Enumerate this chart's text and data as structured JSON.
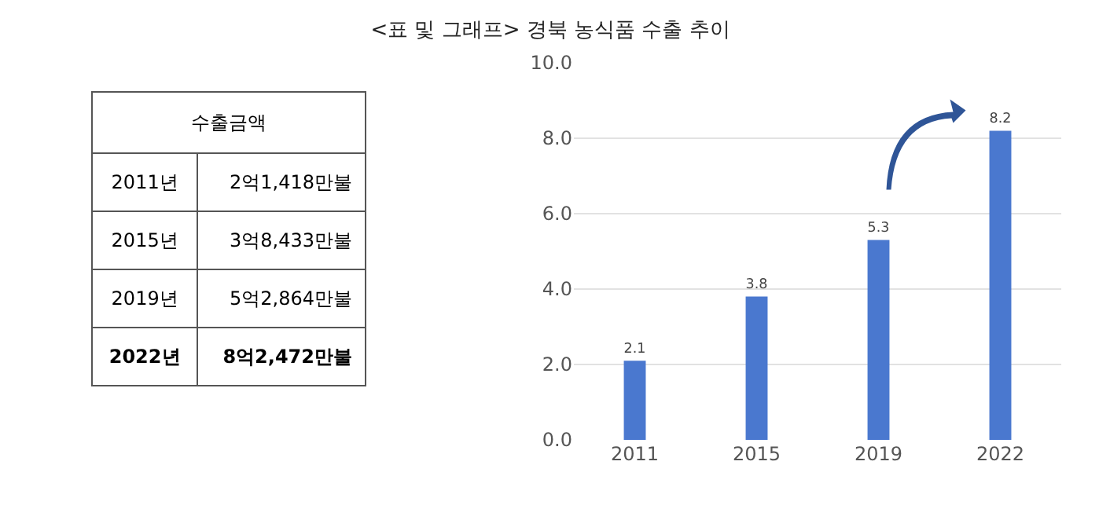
{
  "chart_data": {
    "type": "bar",
    "title": "<표 및 그래프> 경북 농식품 수출 추이",
    "annotations": [
      "수출금액",
      "2011년",
      "2억1,418만불",
      "2015년",
      "3억8,433만불",
      "2019년",
      "5억2,864만불",
      "2022년",
      "8억2,472만불"
    ],
    "categories": [
      "2011",
      "2015",
      "2019",
      "2022"
    ],
    "values": [
      2.1,
      3.8,
      5.3,
      8.2
    ],
    "color": "#4a78cf",
    "data_labels": true,
    "ylim": [
      0,
      10
    ],
    "yticks": [
      {
        "value": 0,
        "label": "0.0"
      },
      {
        "value": 2,
        "label": "2.0"
      },
      {
        "value": 4,
        "label": "4.0"
      },
      {
        "value": 6,
        "label": "6.0"
      },
      {
        "value": 8,
        "label": "8.0"
      },
      {
        "value": 10,
        "label": "10.0"
      }
    ],
    "grid": "y"
  }
}
